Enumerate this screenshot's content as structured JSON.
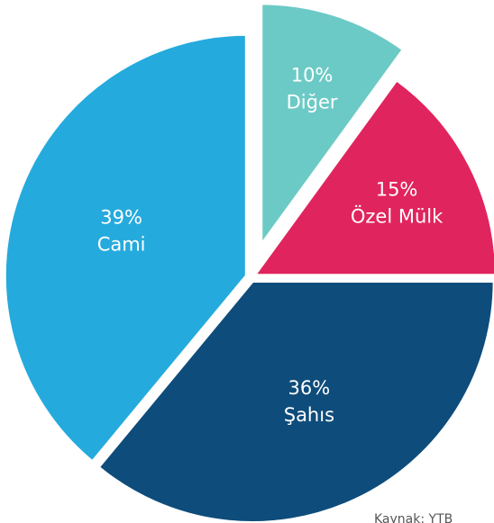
{
  "chart_data": {
    "type": "pie",
    "categories": [
      "Diğer",
      "Özel Mülk",
      "Şahıs",
      "Cami"
    ],
    "values": [
      10,
      15,
      36,
      39
    ],
    "value_labels": [
      "10%",
      "15%",
      "36%",
      "39%"
    ],
    "colors": [
      "#6ccac6",
      "#e0245e",
      "#0e4c7b",
      "#25aadd"
    ],
    "source": "Kaynak: YTB"
  }
}
